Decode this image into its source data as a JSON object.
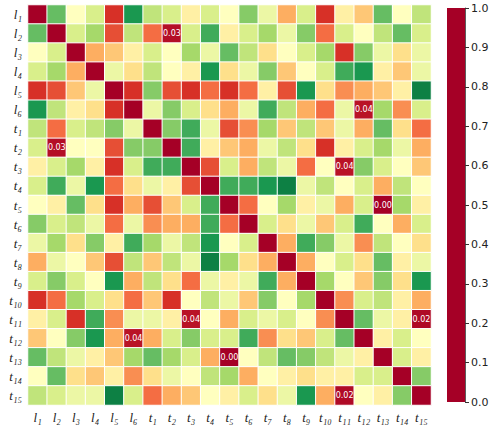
{
  "chart_data": {
    "type": "heatmap",
    "x": [
      "l₁",
      "l₂",
      "l₃",
      "l₄",
      "l₅",
      "l₆",
      "t₁",
      "t₂",
      "t₃",
      "t₄",
      "t₅",
      "t₆",
      "t₇",
      "t₈",
      "t₉",
      "t₁₀",
      "t₁₁",
      "t₁₂",
      "t₁₃",
      "t₁₄",
      "t₁₅"
    ],
    "y": [
      "l₁",
      "l₂",
      "l₃",
      "l₄",
      "l₅",
      "l₆",
      "t₁",
      "t₂",
      "t₃",
      "t₄",
      "t₅",
      "t₆",
      "t₇",
      "t₈",
      "t₉",
      "t₁₀",
      "t₁₁",
      "t₁₂",
      "t₁₃",
      "t₁₄",
      "t₁₅"
    ],
    "cells": [
      [
        0,
        0.8,
        0.5,
        0.6,
        0.1,
        0.9,
        0.65,
        0.6,
        0.45,
        0.6,
        0.5,
        0.75,
        0.55,
        0.3,
        0.6,
        0.1,
        0.45,
        0.35,
        0.8,
        0.5,
        0.65
      ],
      [
        0.8,
        0,
        0.6,
        0.7,
        0.15,
        0.65,
        0.2,
        0.03,
        0.6,
        0.85,
        0.45,
        0.6,
        0.7,
        0.55,
        0.75,
        0.2,
        0.6,
        0.5,
        0.65,
        0.8,
        0.6
      ],
      [
        0.5,
        0.6,
        0,
        0.3,
        0.35,
        0.45,
        0.6,
        0.5,
        0.7,
        0.55,
        0.8,
        0.65,
        0.4,
        0.5,
        0.6,
        0.7,
        0.1,
        0.75,
        0.55,
        0.4,
        0.55
      ],
      [
        0.6,
        0.7,
        0.3,
        0,
        0.55,
        0.4,
        0.65,
        0.5,
        0.45,
        0.9,
        0.4,
        0.55,
        0.75,
        0.35,
        0.5,
        0.6,
        0.85,
        0.9,
        0.45,
        0.35,
        0.55
      ],
      [
        0.1,
        0.15,
        0.35,
        0.55,
        0,
        0.1,
        0.75,
        0.15,
        0.1,
        0.2,
        0.1,
        0.2,
        0.45,
        0.15,
        0.9,
        0.4,
        0.25,
        0.3,
        0.35,
        0.45,
        0.95
      ],
      [
        0.9,
        0.65,
        0.45,
        0.4,
        0.1,
        0,
        0.55,
        0.75,
        0.6,
        0.4,
        0.3,
        0.55,
        0.85,
        0.65,
        0.3,
        0.2,
        0.55,
        0.04,
        0.7,
        0.25,
        0.6
      ],
      [
        0.65,
        0.2,
        0.6,
        0.65,
        0.75,
        0.55,
        0,
        0.75,
        0.85,
        0.55,
        0.15,
        0.25,
        0.7,
        0.35,
        0.65,
        0.35,
        0.55,
        0.3,
        0.8,
        0.4,
        0.2
      ],
      [
        0.6,
        0.03,
        0.5,
        0.5,
        0.15,
        0.75,
        0.75,
        0,
        0.85,
        0.45,
        0.35,
        0.3,
        0.55,
        0.65,
        0.4,
        0.1,
        0.45,
        0.6,
        0.7,
        0.55,
        0.3
      ],
      [
        0.45,
        0.6,
        0.7,
        0.45,
        0.1,
        0.6,
        0.85,
        0.85,
        0,
        0.15,
        0.6,
        0.3,
        0.65,
        0.55,
        0.2,
        0.5,
        0.04,
        0.75,
        0.6,
        0.5,
        0.35
      ],
      [
        0.6,
        0.85,
        0.55,
        0.9,
        0.2,
        0.4,
        0.55,
        0.45,
        0.15,
        0,
        0.85,
        0.85,
        0.9,
        0.95,
        0.55,
        0.65,
        0.5,
        0.6,
        0.3,
        0.65,
        0.5
      ],
      [
        0.5,
        0.45,
        0.8,
        0.4,
        0.1,
        0.3,
        0.15,
        0.35,
        0.6,
        0.85,
        0,
        0.2,
        0.5,
        0.7,
        0.45,
        0.55,
        0.3,
        0.6,
        0.0,
        0.7,
        0.45
      ],
      [
        0.75,
        0.6,
        0.65,
        0.55,
        0.2,
        0.55,
        0.25,
        0.3,
        0.3,
        0.85,
        0.2,
        0,
        0.6,
        0.4,
        0.55,
        0.35,
        0.6,
        0.85,
        0.5,
        0.3,
        0.6
      ],
      [
        0.55,
        0.7,
        0.4,
        0.75,
        0.45,
        0.85,
        0.7,
        0.55,
        0.65,
        0.9,
        0.5,
        0.6,
        0,
        0.3,
        0.85,
        0.75,
        0.55,
        0.25,
        0.65,
        0.5,
        0.4
      ],
      [
        0.3,
        0.55,
        0.5,
        0.35,
        0.15,
        0.65,
        0.35,
        0.65,
        0.55,
        0.95,
        0.7,
        0.4,
        0.3,
        0,
        0.3,
        0.5,
        0.6,
        0.4,
        0.8,
        0.45,
        0.55
      ],
      [
        0.6,
        0.75,
        0.6,
        0.5,
        0.9,
        0.3,
        0.65,
        0.4,
        0.2,
        0.55,
        0.45,
        0.55,
        0.85,
        0.3,
        0,
        0.7,
        0.5,
        0.35,
        0.75,
        0.4,
        0.9
      ],
      [
        0.1,
        0.2,
        0.7,
        0.6,
        0.4,
        0.2,
        0.35,
        0.1,
        0.5,
        0.65,
        0.55,
        0.35,
        0.75,
        0.5,
        0.7,
        0,
        0.25,
        0.6,
        0.65,
        0.45,
        0.3
      ],
      [
        0.45,
        0.6,
        0.1,
        0.85,
        0.25,
        0.55,
        0.55,
        0.45,
        0.04,
        0.5,
        0.3,
        0.6,
        0.55,
        0.6,
        0.5,
        0.25,
        0,
        0.8,
        0.55,
        0.45,
        0.02
      ],
      [
        0.35,
        0.5,
        0.75,
        0.9,
        0.3,
        0.04,
        0.3,
        0.6,
        0.75,
        0.6,
        0.6,
        0.85,
        0.25,
        0.4,
        0.35,
        0.6,
        0.8,
        0,
        0.45,
        0.6,
        0.5
      ],
      [
        0.8,
        0.65,
        0.55,
        0.45,
        0.35,
        0.7,
        0.8,
        0.7,
        0.6,
        0.3,
        0.0,
        0.5,
        0.65,
        0.8,
        0.75,
        0.65,
        0.55,
        0.45,
        0,
        0.6,
        0.45
      ],
      [
        0.5,
        0.8,
        0.4,
        0.35,
        0.45,
        0.25,
        0.4,
        0.55,
        0.5,
        0.65,
        0.7,
        0.3,
        0.5,
        0.45,
        0.4,
        0.45,
        0.45,
        0.6,
        0.6,
        0,
        0.75
      ],
      [
        0.65,
        0.6,
        0.55,
        0.55,
        0.95,
        0.6,
        0.2,
        0.3,
        0.35,
        0.5,
        0.45,
        0.6,
        0.4,
        0.55,
        0.9,
        0.3,
        0.02,
        0.5,
        0.45,
        0.75,
        0
      ]
    ],
    "annotations": [
      {
        "x": "t₂",
        "y": "l₂",
        "text": "0.03"
      },
      {
        "x": "l₂",
        "y": "t₂",
        "text": "0.03"
      },
      {
        "x": "t₁₂",
        "y": "l₆",
        "text": "0.04"
      },
      {
        "x": "l₆",
        "y": "t₁₂",
        "text": "0.04"
      },
      {
        "x": "t₁₁",
        "y": "t₃",
        "text": "0.04"
      },
      {
        "x": "t₃",
        "y": "t₁₁",
        "text": "0.04"
      },
      {
        "x": "t₁₃",
        "y": "t₅",
        "text": "0.00"
      },
      {
        "x": "t₅",
        "y": "t₁₃",
        "text": "0.00"
      },
      {
        "x": "t₁₅",
        "y": "t₁₁",
        "text": "0.02"
      },
      {
        "x": "t₁₁",
        "y": "t₁₅",
        "text": "0.02"
      }
    ],
    "colorbar_range": [
      0,
      1
    ],
    "colorbar_ticks": [
      {
        "value": 0,
        "label": "0.0"
      },
      0.1,
      0.2,
      0.3,
      0.4,
      0.5,
      0.6,
      0.7,
      0.8,
      0.9,
      {
        "value": 1,
        "label": "1.0"
      }
    ]
  }
}
